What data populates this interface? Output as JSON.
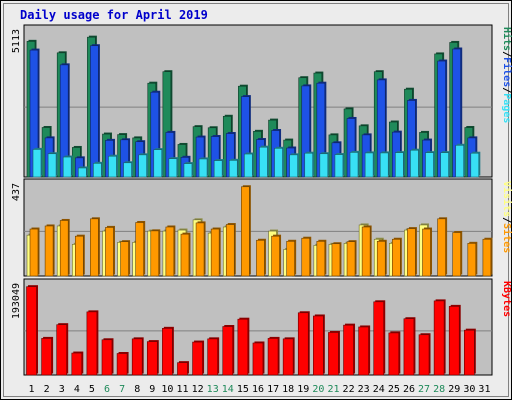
{
  "title": "Daily usage for April 2019",
  "colors": {
    "frame_bg": "#ececec",
    "plot_bg": "#c0c0c0",
    "title_color": "#0000cc",
    "hits": "#1f8a5a",
    "files": "#1e52e6",
    "pages": "#38e0f5",
    "visits": "#ffff80",
    "sites": "#ff9900",
    "kbytes": "#ff0000",
    "weekend_label": "#1f8a5a",
    "weekday_label": "#000000"
  },
  "chart_data": [
    {
      "type": "bar",
      "panel": "hits-files-pages",
      "ylabel_max": "5113",
      "ylim": [
        0,
        5113
      ],
      "legend": [
        "Pages",
        "/",
        "Files",
        "/",
        "Hits"
      ],
      "x": [
        1,
        2,
        3,
        4,
        5,
        6,
        7,
        8,
        9,
        10,
        11,
        12,
        13,
        14,
        15,
        16,
        17,
        18,
        19,
        20,
        21,
        22,
        23,
        24,
        25,
        26,
        27,
        28,
        29,
        30,
        31
      ],
      "weekend_days": [
        6,
        7,
        13,
        14,
        20,
        21,
        27,
        28
      ],
      "series": [
        {
          "name": "Hits",
          "values": [
            4960,
            1810,
            4540,
            1080,
            5113,
            1570,
            1550,
            1430,
            3430,
            3850,
            1190,
            1840,
            1800,
            2220,
            3320,
            1670,
            2080,
            1350,
            3630,
            3800,
            1540,
            2490,
            1870,
            3850,
            2010,
            3210,
            1630,
            4500,
            4920,
            1810,
            0
          ]
        },
        {
          "name": "Files",
          "values": [
            4640,
            1430,
            4100,
            700,
            4800,
            1340,
            1360,
            1290,
            3100,
            1630,
            720,
            1460,
            1480,
            1590,
            2940,
            1370,
            1700,
            1060,
            3330,
            3430,
            1250,
            2140,
            1540,
            3550,
            1640,
            2800,
            1350,
            4240,
            4680,
            1430,
            0
          ]
        },
        {
          "name": "Pages",
          "values": [
            1010,
            850,
            730,
            330,
            500,
            760,
            520,
            810,
            1000,
            670,
            490,
            660,
            600,
            610,
            840,
            1090,
            1050,
            810,
            870,
            850,
            820,
            900,
            880,
            880,
            890,
            980,
            890,
            890,
            1160,
            870,
            0
          ]
        }
      ]
    },
    {
      "type": "bar",
      "panel": "visits-sites",
      "ylabel_max": "437",
      "ylim": [
        0,
        437
      ],
      "legend": [
        "Sites",
        "/",
        "Visits"
      ],
      "x": [
        1,
        2,
        3,
        4,
        5,
        6,
        7,
        8,
        9,
        10,
        11,
        12,
        13,
        14,
        15,
        16,
        17,
        18,
        19,
        20,
        21,
        22,
        23,
        24,
        25,
        26,
        27,
        28,
        29,
        30,
        31
      ],
      "series": [
        {
          "name": "Visits",
          "values": [
            200,
            0,
            245,
            155,
            0,
            220,
            165,
            165,
            220,
            220,
            225,
            275,
            210,
            240,
            0,
            0,
            220,
            130,
            0,
            150,
            155,
            160,
            250,
            180,
            160,
            225,
            250,
            0,
            0,
            0,
            0
          ]
        },
        {
          "name": "Sites",
          "values": [
            230,
            245,
            272,
            195,
            280,
            238,
            168,
            262,
            221,
            240,
            205,
            260,
            230,
            252,
            437,
            175,
            195,
            170,
            185,
            170,
            158,
            168,
            240,
            170,
            180,
            232,
            230,
            280,
            213,
            160,
            180
          ]
        }
      ]
    },
    {
      "type": "bar",
      "panel": "kbytes",
      "ylabel_max": "193049",
      "ylim": [
        0,
        193049
      ],
      "legend": [
        "KBytes"
      ],
      "x": [
        1,
        2,
        3,
        4,
        5,
        6,
        7,
        8,
        9,
        10,
        11,
        12,
        13,
        14,
        15,
        16,
        17,
        18,
        19,
        20,
        21,
        22,
        23,
        24,
        25,
        26,
        27,
        28,
        29,
        30,
        31
      ],
      "series": [
        {
          "name": "KBytes",
          "values": [
            193049,
            80000,
            110000,
            48000,
            138000,
            77000,
            47000,
            79000,
            73000,
            102000,
            27000,
            72000,
            79000,
            106000,
            122000,
            70000,
            80000,
            79000,
            136000,
            129000,
            93000,
            109000,
            105000,
            160000,
            92000,
            123000,
            88000,
            162000,
            150000,
            98000,
            0
          ]
        }
      ]
    }
  ]
}
